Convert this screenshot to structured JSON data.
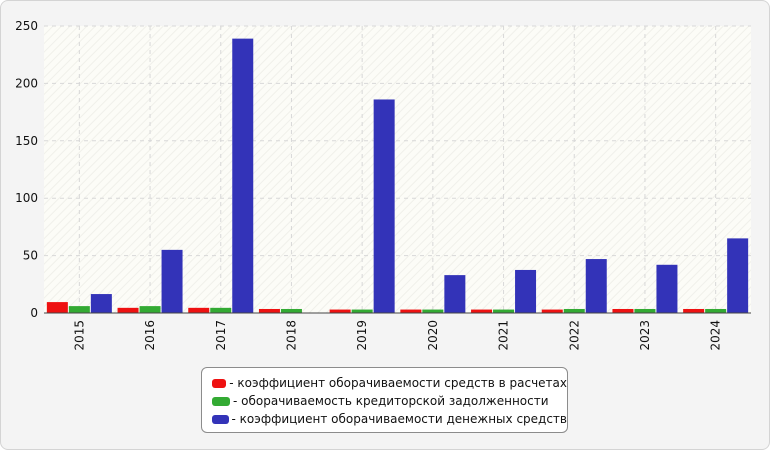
{
  "chart_data": {
    "type": "bar",
    "categories": [
      "2015",
      "2016",
      "2017",
      "2018",
      "2019",
      "2020",
      "2021",
      "2022",
      "2023",
      "2024"
    ],
    "series": [
      {
        "name": "- коэффициент оборачиваемости средств в расчетах",
        "color": "#ee1111",
        "values": [
          9.5,
          4.5,
          4.5,
          3.5,
          3,
          3,
          3,
          3,
          3.5,
          3.5
        ]
      },
      {
        "name": "- оборачиваемость кредиторской задолженности",
        "color": "#33aa33",
        "values": [
          6,
          6,
          4.5,
          3.5,
          3,
          3,
          3,
          3.5,
          3.5,
          3.5
        ]
      },
      {
        "name": "- коэффициент оборачиваемости денежных средств",
        "color": "#3333b8",
        "values": [
          16.5,
          55,
          239,
          0,
          186,
          33,
          37.5,
          47,
          42,
          65
        ]
      }
    ],
    "ylim": [
      0,
      250
    ],
    "yticks": [
      "0",
      "50",
      "100",
      "150",
      "200",
      "250"
    ],
    "grid": true,
    "legend_position": "bottom-center",
    "title": "",
    "xlabel": "",
    "ylabel": ""
  }
}
